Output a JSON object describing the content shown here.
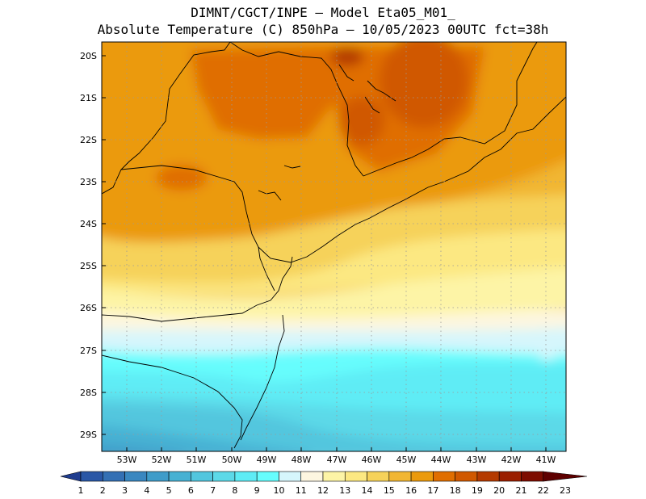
{
  "header": {
    "line1": "DIMNT/CGCT/INPE –  Model Eta05_M01_",
    "line2": "Absolute Temperature (C) 850hPa –  10/05/2023 00UTC fct=38h"
  },
  "map": {
    "lat_labels": [
      "20S",
      "21S",
      "22S",
      "23S",
      "24S",
      "25S",
      "26S",
      "27S",
      "28S",
      "29S"
    ],
    "lon_labels": [
      "53W",
      "52W",
      "51W",
      "50W",
      "49W",
      "48W",
      "47W",
      "46W",
      "45W",
      "44W",
      "43W",
      "42W",
      "41W"
    ],
    "lat_range": [
      -29.4,
      -19.8
    ],
    "lon_range": [
      -53.5,
      -40.8
    ]
  },
  "colorbar": {
    "labels": [
      "1",
      "2",
      "3",
      "4",
      "5",
      "6",
      "7",
      "8",
      "9",
      "10",
      "11",
      "12",
      "13",
      "14",
      "15",
      "16",
      "17",
      "18",
      "19",
      "20",
      "21",
      "22",
      "23"
    ],
    "colors": [
      "#1f3d8f",
      "#2a57a6",
      "#3470b4",
      "#3a87c0",
      "#3f9cc9",
      "#47b1d3",
      "#52c6de",
      "#5cd9e8",
      "#5eecf5",
      "#66fdfd",
      "#d6f6fc",
      "#fdf6e0",
      "#fdf4a6",
      "#fce882",
      "#f6d25a",
      "#f1b633",
      "#eb9a0c",
      "#e06e00",
      "#d05800",
      "#b43a00",
      "#9a1e00",
      "#7d0c00",
      "#5e0000"
    ]
  }
}
